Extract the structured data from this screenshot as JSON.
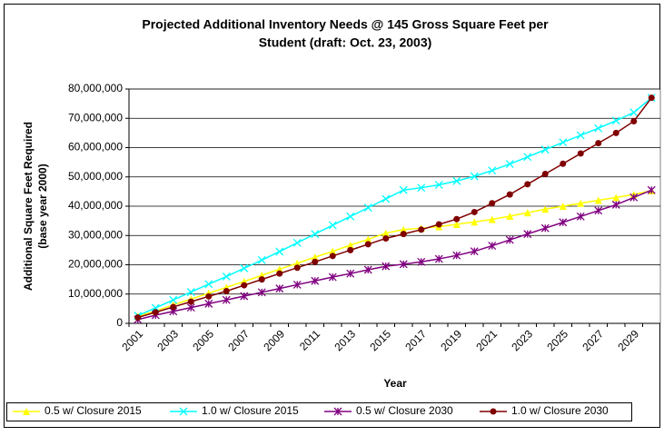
{
  "chart_data": {
    "type": "line",
    "title": [
      "Projected Additional Inventory Needs @ 145 Gross Square Feet per",
      "Student (draft: Oct. 23, 2003)"
    ],
    "xlabel": "Year",
    "ylabel": [
      "Additional Square Feet Required",
      "(base year 2000)"
    ],
    "categories": [
      "2001",
      null,
      "2003",
      null,
      "2005",
      null,
      "2007",
      null,
      "2009",
      null,
      "2011",
      null,
      "2013",
      null,
      "2015",
      null,
      "2017",
      null,
      "2019",
      null,
      "2021",
      null,
      "2023",
      null,
      "2025",
      null,
      "2027",
      null,
      "2029",
      null
    ],
    "ylim": [
      0,
      80000000
    ],
    "yticks": [
      0,
      {
        "value": 10000000,
        "label": "10,000,000"
      },
      {
        "value": 20000000,
        "label": "20,000,000"
      },
      {
        "value": 30000000,
        "label": "30,000,000"
      },
      {
        "value": 40000000,
        "label": "40,000,000"
      },
      {
        "value": 50000000,
        "label": "50,000,000"
      },
      {
        "value": 60000000,
        "label": "60,000,000"
      },
      {
        "value": 70000000,
        "label": "70,000,000"
      },
      {
        "value": 80000000,
        "label": "80,000,000"
      }
    ],
    "grid": true,
    "legend": "bottom",
    "series": [
      {
        "name": "0.5 w/ Closure 2015",
        "color": "#ffff00",
        "marker": "triangle",
        "values": [
          2400000,
          4200000,
          6300000,
          8300000,
          10300000,
          12300000,
          14300000,
          16400000,
          18500000,
          20500000,
          22600000,
          24600000,
          26700000,
          28700000,
          30800000,
          32000000,
          32500000,
          33000000,
          33800000,
          34600000,
          35500000,
          36600000,
          37800000,
          39000000,
          40000000,
          41000000,
          42000000,
          43000000,
          44000000,
          45300000
        ]
      },
      {
        "name": "1.0 w/ Closure 2015",
        "color": "#00ffff",
        "marker": "x",
        "values": [
          2600000,
          5300000,
          8000000,
          10700000,
          13400000,
          16000000,
          18800000,
          21600000,
          24500000,
          27500000,
          30500000,
          33500000,
          36500000,
          39500000,
          42500000,
          45500000,
          46300000,
          47300000,
          48600000,
          50200000,
          52200000,
          54400000,
          56800000,
          59300000,
          61800000,
          64200000,
          66600000,
          69200000,
          72000000,
          77000000
        ]
      },
      {
        "name": "0.5 w/ Closure 2030",
        "color": "#800080",
        "marker": "star",
        "values": [
          1300000,
          2800000,
          4100000,
          5400000,
          6700000,
          8000000,
          9300000,
          10600000,
          11900000,
          13200000,
          14500000,
          15800000,
          17000000,
          18300000,
          19500000,
          20200000,
          21000000,
          22000000,
          23200000,
          24600000,
          26500000,
          28500000,
          30500000,
          32500000,
          34500000,
          36500000,
          38500000,
          40500000,
          43000000,
          45500000
        ]
      },
      {
        "name": "1.0 w/ Closure 2030",
        "color": "#800000",
        "marker": "circle",
        "values": [
          2000000,
          3800000,
          5600000,
          7400000,
          9200000,
          11000000,
          13000000,
          15000000,
          17000000,
          19000000,
          21000000,
          23000000,
          25000000,
          27000000,
          29000000,
          30500000,
          32000000,
          33800000,
          35600000,
          38000000,
          41000000,
          44000000,
          47500000,
          51000000,
          54500000,
          58000000,
          61500000,
          65000000,
          69000000,
          77000000
        ]
      }
    ]
  }
}
